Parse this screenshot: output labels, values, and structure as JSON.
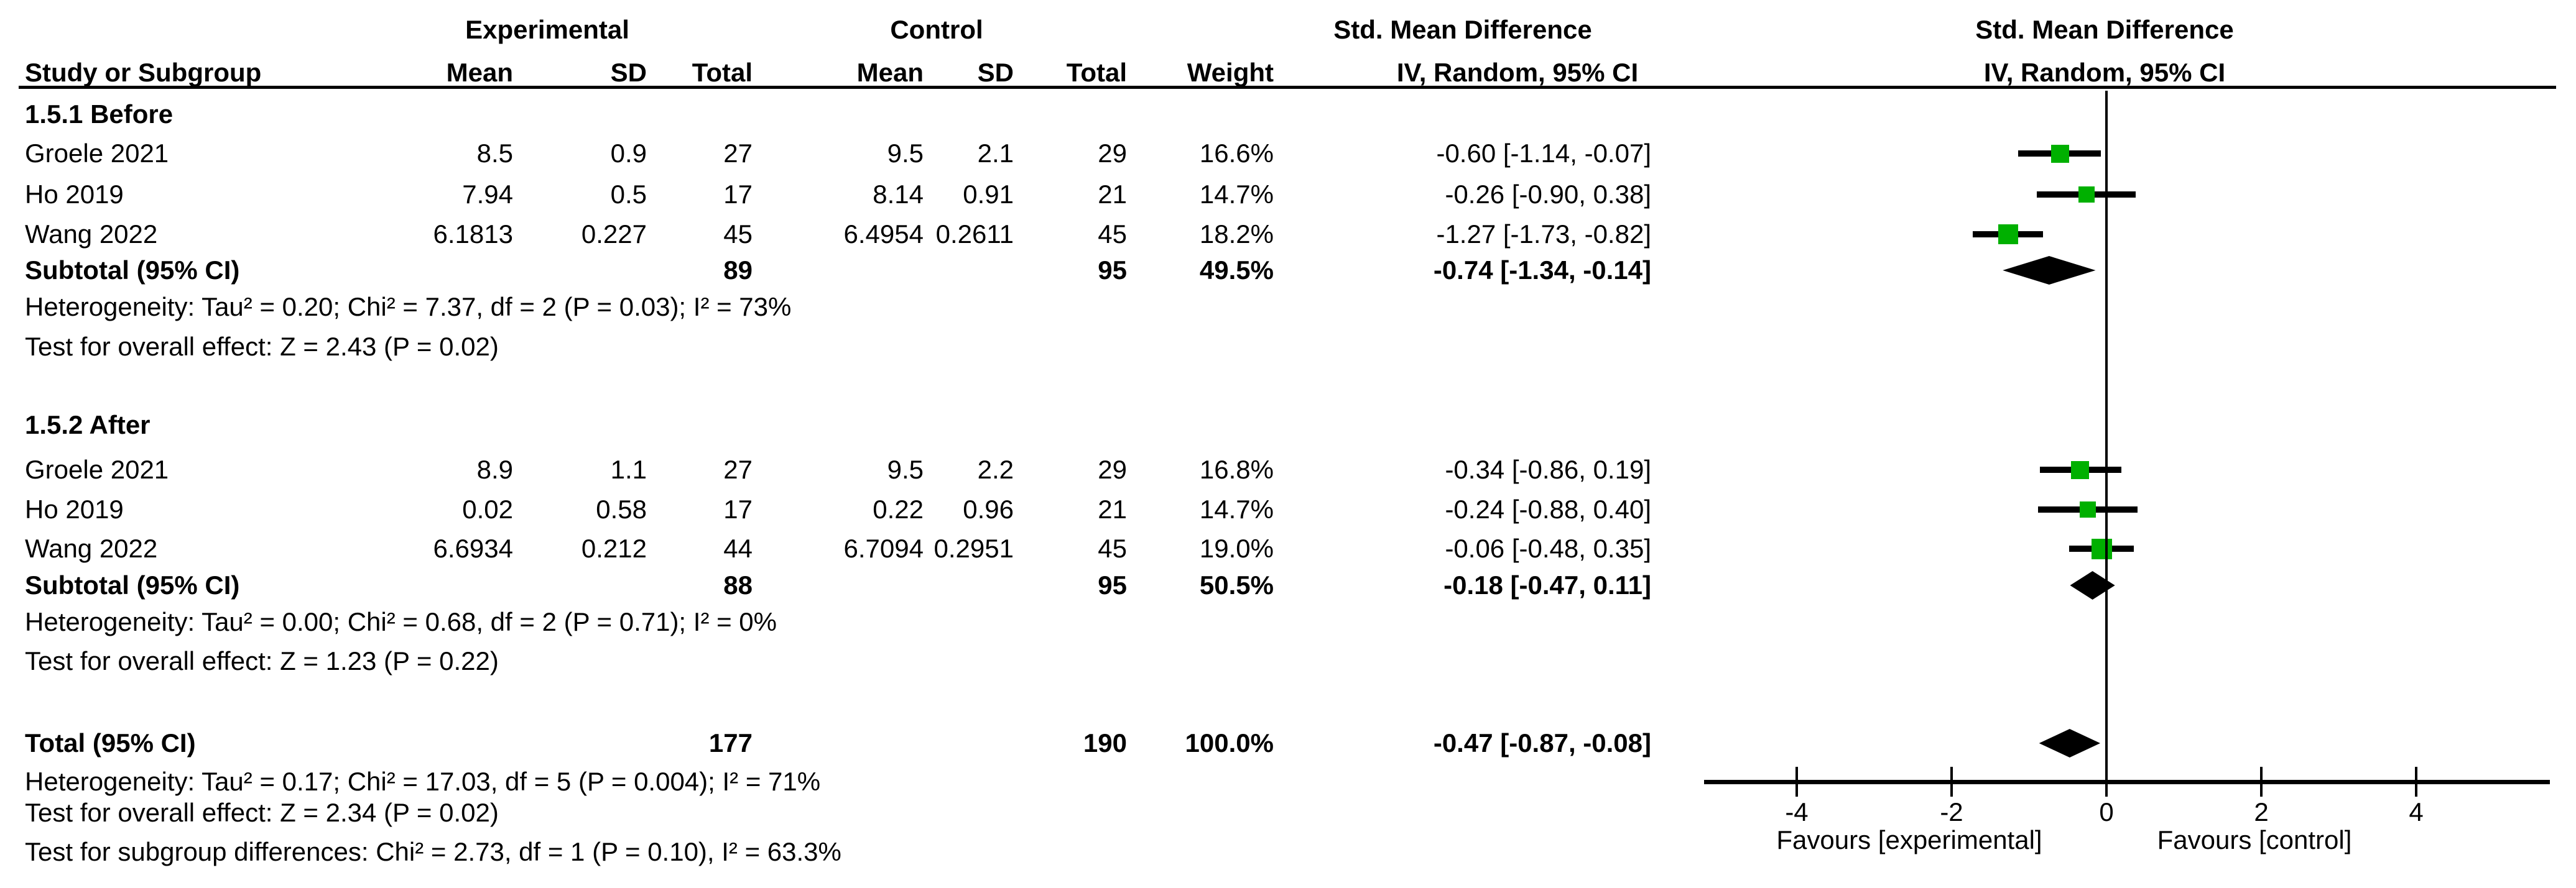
{
  "headers": {
    "experimental": "Experimental",
    "control": "Control",
    "smd_left": "Std. Mean Difference",
    "smd_right": "Std. Mean Difference",
    "study_or_subgroup": "Study or Subgroup",
    "mean_exp": "Mean",
    "sd_exp": "SD",
    "total_exp": "Total",
    "mean_ctrl": "Mean",
    "sd_ctrl": "SD",
    "total_ctrl": "Total",
    "weight": "Weight",
    "iv_random_left": "IV, Random, 95% CI",
    "iv_random_right": "IV, Random, 95% CI"
  },
  "chart_data": {
    "type": "scatter",
    "subtype": "forest-plot",
    "effect_measure": "Std. Mean Difference",
    "model": "IV, Random, 95% CI",
    "xticks": [
      -4,
      -2,
      0,
      2,
      4
    ],
    "xtick_labels": [
      "-4",
      "-2",
      "0",
      "2",
      "4"
    ],
    "xlim": [
      -5.2,
      5.7
    ],
    "favours_left": "Favours [experimental]",
    "favours_right": "Favours [control]",
    "marker_color": "#00b000",
    "diamond_color": "#000000",
    "groups": [
      {
        "label": "1.5.1 Before",
        "studies": [
          {
            "study": "Groele 2021",
            "mean_e": "8.5",
            "sd_e": "0.9",
            "total_e": "27",
            "mean_c": "9.5",
            "sd_c": "2.1",
            "total_c": "29",
            "weight": "16.6%",
            "ci_label": "-0.60 [-1.14, -0.07]",
            "effect": -0.6,
            "ci_low": -1.14,
            "ci_high": -0.07,
            "weight_pct": 16.6
          },
          {
            "study": "Ho 2019",
            "mean_e": "7.94",
            "sd_e": "0.5",
            "total_e": "17",
            "mean_c": "8.14",
            "sd_c": "0.91",
            "total_c": "21",
            "weight": "14.7%",
            "ci_label": "-0.26 [-0.90, 0.38]",
            "effect": -0.26,
            "ci_low": -0.9,
            "ci_high": 0.38,
            "weight_pct": 14.7
          },
          {
            "study": "Wang 2022",
            "mean_e": "6.1813",
            "sd_e": "0.227",
            "total_e": "45",
            "mean_c": "6.4954",
            "sd_c": "0.2611",
            "total_c": "45",
            "weight": "18.2%",
            "ci_label": "-1.27 [-1.73, -0.82]",
            "effect": -1.27,
            "ci_low": -1.73,
            "ci_high": -0.82,
            "weight_pct": 18.2
          }
        ],
        "subtotal": {
          "label": "Subtotal (95% CI)",
          "total_e": "89",
          "total_c": "95",
          "weight": "49.5%",
          "ci_label": "-0.74 [-1.34, -0.14]",
          "effect": -0.74,
          "ci_low": -1.34,
          "ci_high": -0.14
        },
        "heterogeneity": "Heterogeneity: Tau² = 0.20; Chi² = 7.37, df = 2 (P = 0.03); I² = 73%",
        "overall_effect": "Test for overall effect: Z = 2.43 (P = 0.02)"
      },
      {
        "label": "1.5.2 After",
        "studies": [
          {
            "study": "Groele 2021",
            "mean_e": "8.9",
            "sd_e": "1.1",
            "total_e": "27",
            "mean_c": "9.5",
            "sd_c": "2.2",
            "total_c": "29",
            "weight": "16.8%",
            "ci_label": "-0.34 [-0.86, 0.19]",
            "effect": -0.34,
            "ci_low": -0.86,
            "ci_high": 0.19,
            "weight_pct": 16.8
          },
          {
            "study": "Ho 2019",
            "mean_e": "0.02",
            "sd_e": "0.58",
            "total_e": "17",
            "mean_c": "0.22",
            "sd_c": "0.96",
            "total_c": "21",
            "weight": "14.7%",
            "ci_label": "-0.24 [-0.88, 0.40]",
            "effect": -0.24,
            "ci_low": -0.88,
            "ci_high": 0.4,
            "weight_pct": 14.7
          },
          {
            "study": "Wang 2022",
            "mean_e": "6.6934",
            "sd_e": "0.212",
            "total_e": "44",
            "mean_c": "6.7094",
            "sd_c": "0.2951",
            "total_c": "45",
            "weight": "19.0%",
            "ci_label": "-0.06 [-0.48, 0.35]",
            "effect": -0.06,
            "ci_low": -0.48,
            "ci_high": 0.35,
            "weight_pct": 19.0
          }
        ],
        "subtotal": {
          "label": "Subtotal (95% CI)",
          "total_e": "88",
          "total_c": "95",
          "weight": "50.5%",
          "ci_label": "-0.18 [-0.47, 0.11]",
          "effect": -0.18,
          "ci_low": -0.47,
          "ci_high": 0.11
        },
        "heterogeneity": "Heterogeneity: Tau² = 0.00; Chi² = 0.68, df = 2 (P = 0.71); I² = 0%",
        "overall_effect": "Test for overall effect: Z = 1.23 (P = 0.22)"
      }
    ],
    "total": {
      "label": "Total (95% CI)",
      "total_e": "177",
      "total_c": "190",
      "weight": "100.0%",
      "ci_label": "-0.47 [-0.87, -0.08]",
      "effect": -0.47,
      "ci_low": -0.87,
      "ci_high": -0.08
    },
    "footer": [
      "Heterogeneity: Tau² = 0.17; Chi² = 17.03, df = 5 (P = 0.004); I² = 71%",
      "Test for overall effect: Z = 2.34 (P = 0.02)",
      "Test for subgroup differences: Chi² = 2.73, df = 1 (P = 0.10), I² = 63.3%"
    ]
  }
}
